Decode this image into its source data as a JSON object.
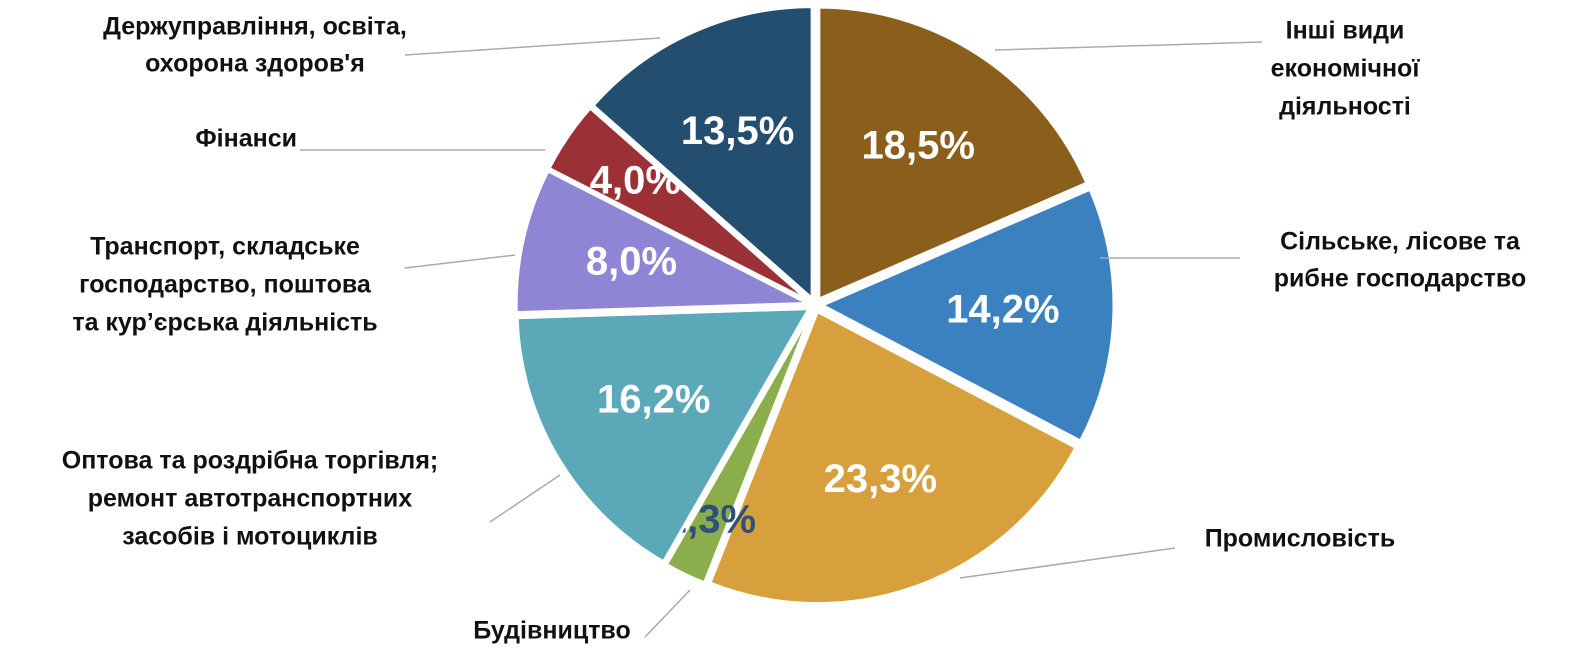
{
  "chart_data": {
    "type": "pie",
    "categories": [
      [
        "Інші види",
        "економічної",
        "діяльності"
      ],
      [
        "Сільське, лісове та",
        "рибне господарство"
      ],
      [
        "Промисловість"
      ],
      [
        "Будівництво"
      ],
      [
        "Оптова та роздрібна торгівля;",
        "ремонт автотранспортних",
        "засобів і мотоциклів"
      ],
      [
        "Транспорт, складське",
        "господарство, поштова",
        "та кур’єрська діяльність"
      ],
      [
        "Фінанси"
      ],
      [
        "Держуправління, освіта,",
        "охорона здоров'я"
      ]
    ],
    "values": [
      18.5,
      14.2,
      23.3,
      2.3,
      16.2,
      8.0,
      4.0,
      13.5
    ],
    "value_labels": [
      "18,5%",
      "14,2%",
      "23,3%",
      "2,3%",
      "16,2%",
      "8,0%",
      "4,0%",
      "13,5%"
    ],
    "colors": [
      "#8a5f1c",
      "#3b80bf",
      "#d8a03c",
      "#8bad4b",
      "#5aa8b8",
      "#8e86d5",
      "#9b3136",
      "#234e70"
    ],
    "value_label_colors": [
      "#ffffff",
      "#ffffff",
      "#ffffff",
      "#2f5079",
      "#ffffff",
      "#ffffff",
      "#ffffff",
      "#ffffff"
    ]
  }
}
